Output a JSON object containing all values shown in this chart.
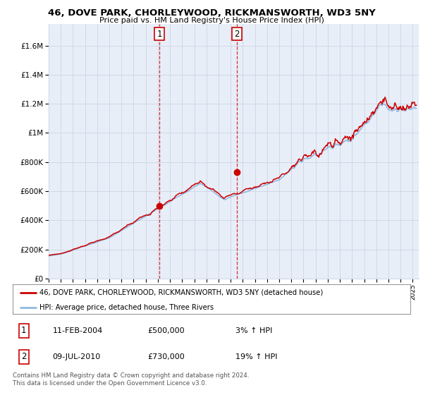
{
  "title": "46, DOVE PARK, CHORLEYWOOD, RICKMANSWORTH, WD3 5NY",
  "subtitle": "Price paid vs. HM Land Registry's House Price Index (HPI)",
  "ylabel_ticks": [
    "£0",
    "£200K",
    "£400K",
    "£600K",
    "£800K",
    "£1M",
    "£1.2M",
    "£1.4M",
    "£1.6M"
  ],
  "ylabel_values": [
    0,
    200000,
    400000,
    600000,
    800000,
    1000000,
    1200000,
    1400000,
    1600000
  ],
  "ylim": [
    0,
    1750000
  ],
  "xlim_start": 1995.0,
  "xlim_end": 2025.5,
  "background_color": "#ffffff",
  "plot_bg_color": "#e8eef8",
  "grid_color": "#d0d8e8",
  "hpi_line_color": "#90b8e0",
  "price_line_color": "#cc0000",
  "transaction1_x": 2004.12,
  "transaction1_y": 500000,
  "transaction2_x": 2010.52,
  "transaction2_y": 730000,
  "legend_label1": "46, DOVE PARK, CHORLEYWOOD, RICKMANSWORTH, WD3 5NY (detached house)",
  "legend_label2": "HPI: Average price, detached house, Three Rivers",
  "table_row1": [
    "1",
    "11-FEB-2004",
    "£500,000",
    "3% ↑ HPI"
  ],
  "table_row2": [
    "2",
    "09-JUL-2010",
    "£730,000",
    "19% ↑ HPI"
  ],
  "footnote": "Contains HM Land Registry data © Crown copyright and database right 2024.\nThis data is licensed under the Open Government Licence v3.0.",
  "xtick_years": [
    1995,
    1996,
    1997,
    1998,
    1999,
    2000,
    2001,
    2002,
    2003,
    2004,
    2005,
    2006,
    2007,
    2008,
    2009,
    2010,
    2011,
    2012,
    2013,
    2014,
    2015,
    2016,
    2017,
    2018,
    2019,
    2020,
    2021,
    2022,
    2023,
    2024,
    2025
  ]
}
